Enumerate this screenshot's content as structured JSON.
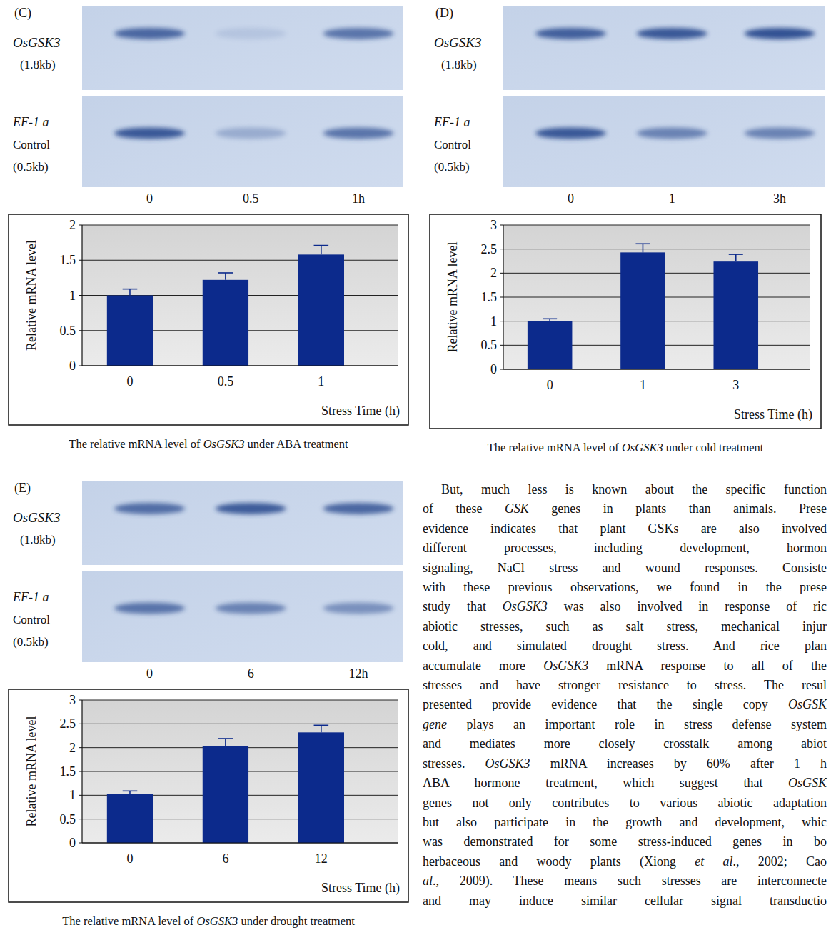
{
  "panels": [
    {
      "letter": "(C)",
      "gel": {
        "gene": "OsGSK3",
        "gene_size": "(1.8kb)",
        "control_gene": "EF-1 a",
        "control_label": "Control",
        "control_size": "(0.5kb)",
        "lanes": [
          "0",
          "0.5",
          "1h"
        ]
      },
      "caption": [
        "The relative mRNA level of ",
        {
          "italic": "OsGSK3"
        },
        " under ABA treatment"
      ]
    },
    {
      "letter": "(D)",
      "gel": {
        "gene": "OsGSK3",
        "gene_size": "(1.8kb)",
        "control_gene": "EF-1 a",
        "control_label": "Control",
        "control_size": "(0.5kb)",
        "lanes": [
          "0",
          "1",
          "3h"
        ]
      },
      "caption": [
        "The relative mRNA level of ",
        {
          "italic": "OsGSK3"
        },
        " under cold treatment"
      ]
    },
    {
      "letter": "(E)",
      "gel": {
        "gene": "OsGSK3",
        "gene_size": "(1.8kb)",
        "control_gene": "EF-1 a",
        "control_label": "Control",
        "control_size": "(0.5kb)",
        "lanes": [
          "0",
          "6",
          "12h"
        ]
      },
      "caption": [
        "The relative mRNA level of ",
        {
          "italic": "OsGSK3"
        },
        " under drought treatment"
      ]
    }
  ],
  "chart_data": [
    {
      "type": "bar",
      "categories": [
        "0",
        "0.5",
        "1"
      ],
      "values": [
        1.0,
        1.22,
        1.58
      ],
      "errors": [
        0.09,
        0.1,
        0.13
      ],
      "color": "#0c2a8c",
      "ylim": [
        0,
        2
      ],
      "yticks": [
        0,
        0.5,
        1,
        1.5,
        2
      ],
      "grid": true,
      "y_label": "Relative mRNA level",
      "x_label": "Stress Time (h)"
    },
    {
      "type": "bar",
      "categories": [
        "0",
        "1",
        "3"
      ],
      "values": [
        1.0,
        2.43,
        2.24
      ],
      "errors": [
        0.05,
        0.18,
        0.15
      ],
      "color": "#0c2a8c",
      "ylim": [
        0,
        3
      ],
      "yticks": [
        0,
        0.5,
        1,
        1.5,
        2,
        2.5,
        3
      ],
      "grid": true,
      "y_label": "Relative mRNA level",
      "x_label": "Stress Time (h)"
    },
    {
      "type": "bar",
      "categories": [
        "0",
        "6",
        "12"
      ],
      "values": [
        1.02,
        2.03,
        2.32
      ],
      "errors": [
        0.07,
        0.16,
        0.15
      ],
      "color": "#0c2a8c",
      "ylim": [
        0,
        3
      ],
      "yticks": [
        0,
        0.5,
        1,
        1.5,
        2,
        2.5,
        3
      ],
      "grid": true,
      "y_label": "Relative mRNA level",
      "x_label": "Stress Time (h)"
    }
  ],
  "paragraph": [
    [
      "But, much less is known about the specific function"
    ],
    [
      "of these ",
      {
        "italic": "GSK"
      },
      " genes in plants than animals. Prese"
    ],
    [
      "evidence indicates that plant GSKs are also involved"
    ],
    [
      "different processes, including development, hormon"
    ],
    [
      "signaling, NaCl stress and wound responses. Consiste"
    ],
    [
      "with these previous observations, we found in the prese"
    ],
    [
      "study that ",
      {
        "italic": "OsGSK3"
      },
      " was also involved in response of ric"
    ],
    [
      "abiotic stresses, such as salt stress, mechanical injur"
    ],
    [
      "cold, and simulated drought stress. And rice plan"
    ],
    [
      "accumulate more ",
      {
        "italic": "OsGSK3"
      },
      " mRNA response to all of the"
    ],
    [
      "stresses and have stronger resistance to stress. The resul"
    ],
    [
      "presented provide evidence that the single copy ",
      {
        "italic": "OsGSK"
      }
    ],
    [
      {
        "italic": "gene"
      },
      " plays an important role in stress defense system"
    ],
    [
      "and mediates more closely crosstalk among abiot"
    ],
    [
      "stresses. ",
      {
        "italic": "OsGSK3"
      },
      " mRNA increases by 60% after 1 h"
    ],
    [
      "ABA hormone treatment, which suggest that ",
      {
        "italic": "OsGSK"
      }
    ],
    [
      "genes not only contributes to various abiotic adaptation"
    ],
    [
      "but also participate in the growth and development, whic"
    ],
    [
      "was demonstrated for some stress-induced genes in bo"
    ],
    [
      "herbaceous and woody plants (Xiong ",
      {
        "italic": "et al"
      },
      "., 2002; Cao"
    ],
    [
      {
        "italic": "al"
      },
      "., 2009). These means such stresses are interconnecte"
    ],
    [
      "and may induce similar cellular signal transductio"
    ]
  ]
}
